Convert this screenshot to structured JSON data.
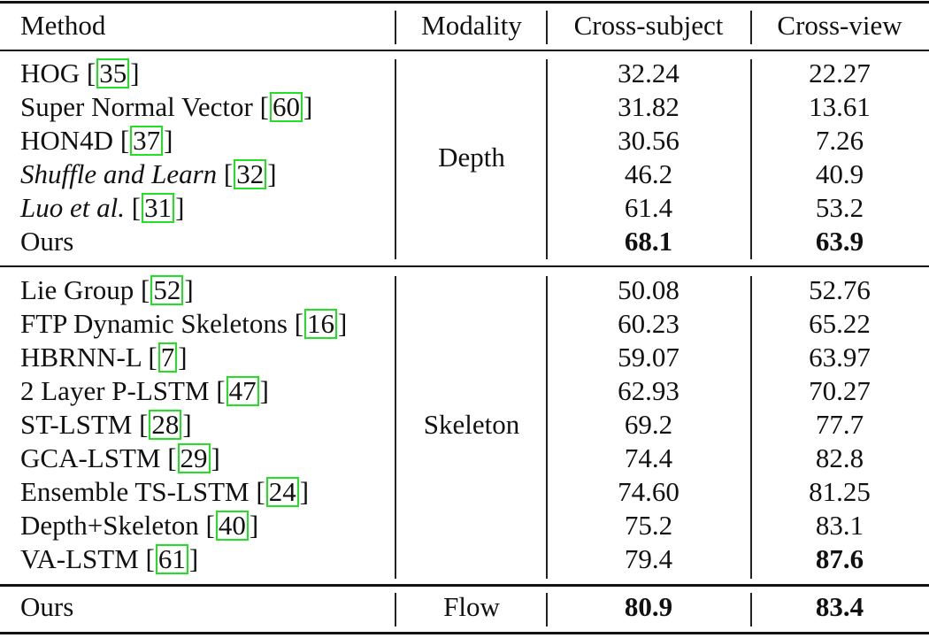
{
  "table": {
    "headers": [
      "Method",
      "Modality",
      "Cross-subject",
      "Cross-view"
    ],
    "groups": [
      {
        "modality": "Depth",
        "rows": [
          {
            "method": "HOG",
            "cite": "35",
            "italic": false,
            "cross_subject": "32.24",
            "cross_view": "22.27",
            "bold_cs": false,
            "bold_cv": false
          },
          {
            "method": "Super Normal Vector",
            "cite": "60",
            "italic": false,
            "cross_subject": "31.82",
            "cross_view": "13.61",
            "bold_cs": false,
            "bold_cv": false
          },
          {
            "method": "HON4D",
            "cite": "37",
            "italic": false,
            "cross_subject": "30.56",
            "cross_view": "7.26",
            "bold_cs": false,
            "bold_cv": false
          },
          {
            "method": "Shuffle and Learn",
            "cite": "32",
            "italic": true,
            "cross_subject": "46.2",
            "cross_view": "40.9",
            "bold_cs": false,
            "bold_cv": false
          },
          {
            "method": "Luo et al.",
            "cite": "31",
            "italic": true,
            "cross_subject": "61.4",
            "cross_view": "53.2",
            "bold_cs": false,
            "bold_cv": false
          },
          {
            "method": "Ours",
            "cite": "",
            "italic": false,
            "cross_subject": "68.1",
            "cross_view": "63.9",
            "bold_cs": true,
            "bold_cv": true
          }
        ]
      },
      {
        "modality": "Skeleton",
        "rows": [
          {
            "method": "Lie Group",
            "cite": "52",
            "italic": false,
            "cross_subject": "50.08",
            "cross_view": "52.76",
            "bold_cs": false,
            "bold_cv": false
          },
          {
            "method": "FTP Dynamic Skeletons",
            "cite": "16",
            "italic": false,
            "cross_subject": "60.23",
            "cross_view": "65.22",
            "bold_cs": false,
            "bold_cv": false
          },
          {
            "method": "HBRNN-L",
            "cite": "7",
            "italic": false,
            "cross_subject": "59.07",
            "cross_view": "63.97",
            "bold_cs": false,
            "bold_cv": false
          },
          {
            "method": "2 Layer P-LSTM",
            "cite": "47",
            "italic": false,
            "cross_subject": "62.93",
            "cross_view": "70.27",
            "bold_cs": false,
            "bold_cv": false
          },
          {
            "method": "ST-LSTM",
            "cite": "28",
            "italic": false,
            "cross_subject": "69.2",
            "cross_view": "77.7",
            "bold_cs": false,
            "bold_cv": false
          },
          {
            "method": "GCA-LSTM",
            "cite": "29",
            "italic": false,
            "cross_subject": "74.4",
            "cross_view": "82.8",
            "bold_cs": false,
            "bold_cv": false
          },
          {
            "method": "Ensemble TS-LSTM",
            "cite": "24",
            "italic": false,
            "cross_subject": "74.60",
            "cross_view": "81.25",
            "bold_cs": false,
            "bold_cv": false
          },
          {
            "method": "Depth+Skeleton",
            "cite": "40",
            "italic": false,
            "cross_subject": "75.2",
            "cross_view": "83.1",
            "bold_cs": false,
            "bold_cv": false
          },
          {
            "method": "VA-LSTM",
            "cite": "61",
            "italic": false,
            "cross_subject": "79.4",
            "cross_view": "87.6",
            "bold_cs": false,
            "bold_cv": true
          }
        ]
      },
      {
        "modality": "Flow",
        "rows": [
          {
            "method": "Ours",
            "cite": "",
            "italic": false,
            "cross_subject": "80.9",
            "cross_view": "83.4",
            "bold_cs": true,
            "bold_cv": true
          }
        ]
      }
    ],
    "colors": {
      "citation_box": "#22e022",
      "text": "#111111"
    }
  }
}
